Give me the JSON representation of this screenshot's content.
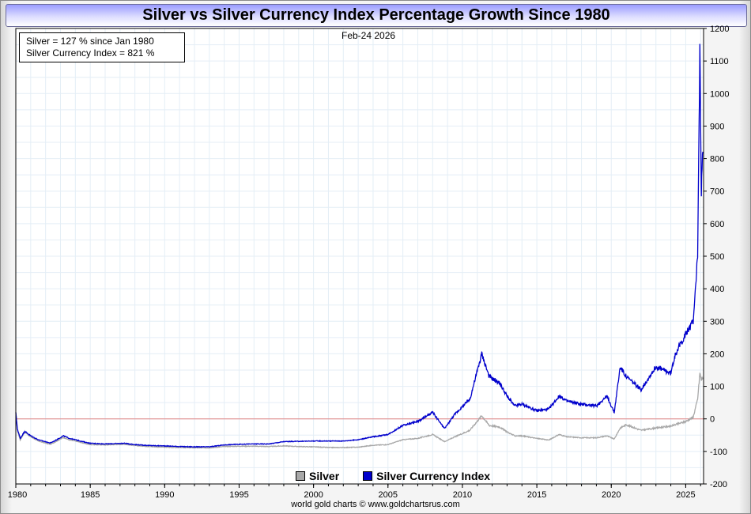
{
  "header": {
    "title": "Silver vs Silver Currency Index Percentage Growth Since 1980"
  },
  "info": {
    "line1": "Silver = 127 % since Jan 1980",
    "line2": "Silver Currency Index = 821 %"
  },
  "date": "Feb-24  2026",
  "credit": "world gold charts © www.goldchartsrus.com",
  "chart_data": {
    "type": "line",
    "title": "Silver vs Silver Currency Index Percentage Growth Since 1980",
    "xlabel": "",
    "ylabel": "",
    "xlim": [
      1980,
      2026.2
    ],
    "ylim": [
      -200,
      1200
    ],
    "x_ticks": [
      1980,
      1985,
      1990,
      1995,
      2000,
      2005,
      2010,
      2015,
      2020,
      2025
    ],
    "y_ticks": [
      -200,
      -100,
      0,
      100,
      200,
      300,
      400,
      500,
      600,
      700,
      800,
      900,
      1000,
      1100,
      1200
    ],
    "reference_line": 0,
    "legend": [
      "Silver",
      "Silver Currency Index"
    ],
    "legend_position": "bottom-center",
    "series": [
      {
        "name": "Silver",
        "color": "#a8a8a8",
        "points": [
          [
            1980,
            20
          ],
          [
            1980.1,
            -35
          ],
          [
            1980.3,
            -65
          ],
          [
            1980.6,
            -40
          ],
          [
            1981,
            -55
          ],
          [
            1981.5,
            -68
          ],
          [
            1982.3,
            -78
          ],
          [
            1982.6,
            -72
          ],
          [
            1983.2,
            -57
          ],
          [
            1983.6,
            -65
          ],
          [
            1984,
            -68
          ],
          [
            1984.5,
            -74
          ],
          [
            1985,
            -79
          ],
          [
            1986,
            -80
          ],
          [
            1987.3,
            -78
          ],
          [
            1988,
            -82
          ],
          [
            1989,
            -85
          ],
          [
            1990,
            -87
          ],
          [
            1991,
            -88
          ],
          [
            1992,
            -89
          ],
          [
            1993,
            -89
          ],
          [
            1994,
            -85
          ],
          [
            1995,
            -84
          ],
          [
            1996,
            -84
          ],
          [
            1997,
            -85
          ],
          [
            1998,
            -83
          ],
          [
            1999,
            -85
          ],
          [
            2000,
            -86
          ],
          [
            2001,
            -88
          ],
          [
            2002,
            -88
          ],
          [
            2003,
            -87
          ],
          [
            2004,
            -81
          ],
          [
            2005,
            -79
          ],
          [
            2006,
            -64
          ],
          [
            2007,
            -60
          ],
          [
            2008,
            -48
          ],
          [
            2008.8,
            -70
          ],
          [
            2009.5,
            -55
          ],
          [
            2010.5,
            -35
          ],
          [
            2011.3,
            10
          ],
          [
            2011.8,
            -20
          ],
          [
            2012.5,
            -25
          ],
          [
            2013,
            -40
          ],
          [
            2013.5,
            -52
          ],
          [
            2014,
            -52
          ],
          [
            2015,
            -60
          ],
          [
            2015.8,
            -65
          ],
          [
            2016.5,
            -48
          ],
          [
            2017,
            -55
          ],
          [
            2018,
            -58
          ],
          [
            2019,
            -58
          ],
          [
            2019.7,
            -52
          ],
          [
            2020.2,
            -62
          ],
          [
            2020.6,
            -28
          ],
          [
            2021,
            -18
          ],
          [
            2022,
            -35
          ],
          [
            2023,
            -28
          ],
          [
            2024,
            -22
          ],
          [
            2025,
            -8
          ],
          [
            2025.5,
            5
          ],
          [
            2025.8,
            60
          ],
          [
            2025.95,
            140
          ],
          [
            2026.05,
            120
          ],
          [
            2026.15,
            127
          ]
        ]
      },
      {
        "name": "Silver Currency Index",
        "color": "#0000cc",
        "points": [
          [
            1980,
            20
          ],
          [
            1980.1,
            -30
          ],
          [
            1980.3,
            -60
          ],
          [
            1980.6,
            -38
          ],
          [
            1981,
            -52
          ],
          [
            1981.5,
            -64
          ],
          [
            1982.3,
            -74
          ],
          [
            1982.6,
            -68
          ],
          [
            1983.2,
            -52
          ],
          [
            1983.6,
            -60
          ],
          [
            1984,
            -64
          ],
          [
            1984.5,
            -70
          ],
          [
            1985,
            -75
          ],
          [
            1986,
            -77
          ],
          [
            1987.3,
            -75
          ],
          [
            1988,
            -79
          ],
          [
            1989,
            -82
          ],
          [
            1990,
            -83
          ],
          [
            1991,
            -85
          ],
          [
            1992,
            -86
          ],
          [
            1993,
            -86
          ],
          [
            1994,
            -80
          ],
          [
            1995,
            -78
          ],
          [
            1996,
            -77
          ],
          [
            1997,
            -77
          ],
          [
            1998,
            -70
          ],
          [
            1999,
            -69
          ],
          [
            2000,
            -68
          ],
          [
            2001,
            -68
          ],
          [
            2002,
            -68
          ],
          [
            2003,
            -64
          ],
          [
            2004,
            -55
          ],
          [
            2005,
            -48
          ],
          [
            2006,
            -20
          ],
          [
            2007,
            -8
          ],
          [
            2008,
            20
          ],
          [
            2008.8,
            -30
          ],
          [
            2009.5,
            15
          ],
          [
            2010.5,
            60
          ],
          [
            2011.3,
            200
          ],
          [
            2011.8,
            130
          ],
          [
            2012.5,
            110
          ],
          [
            2013,
            70
          ],
          [
            2013.5,
            40
          ],
          [
            2014,
            45
          ],
          [
            2015,
            25
          ],
          [
            2015.8,
            30
          ],
          [
            2016.5,
            70
          ],
          [
            2017,
            55
          ],
          [
            2018,
            45
          ],
          [
            2019,
            40
          ],
          [
            2019.7,
            70
          ],
          [
            2020.2,
            20
          ],
          [
            2020.6,
            160
          ],
          [
            2021,
            130
          ],
          [
            2022,
            90
          ],
          [
            2023,
            160
          ],
          [
            2024,
            140
          ],
          [
            2024.3,
            200
          ],
          [
            2025,
            260
          ],
          [
            2025.5,
            300
          ],
          [
            2025.8,
            500
          ],
          [
            2025.95,
            1120
          ],
          [
            2026.05,
            700
          ],
          [
            2026.15,
            821
          ]
        ]
      }
    ]
  }
}
